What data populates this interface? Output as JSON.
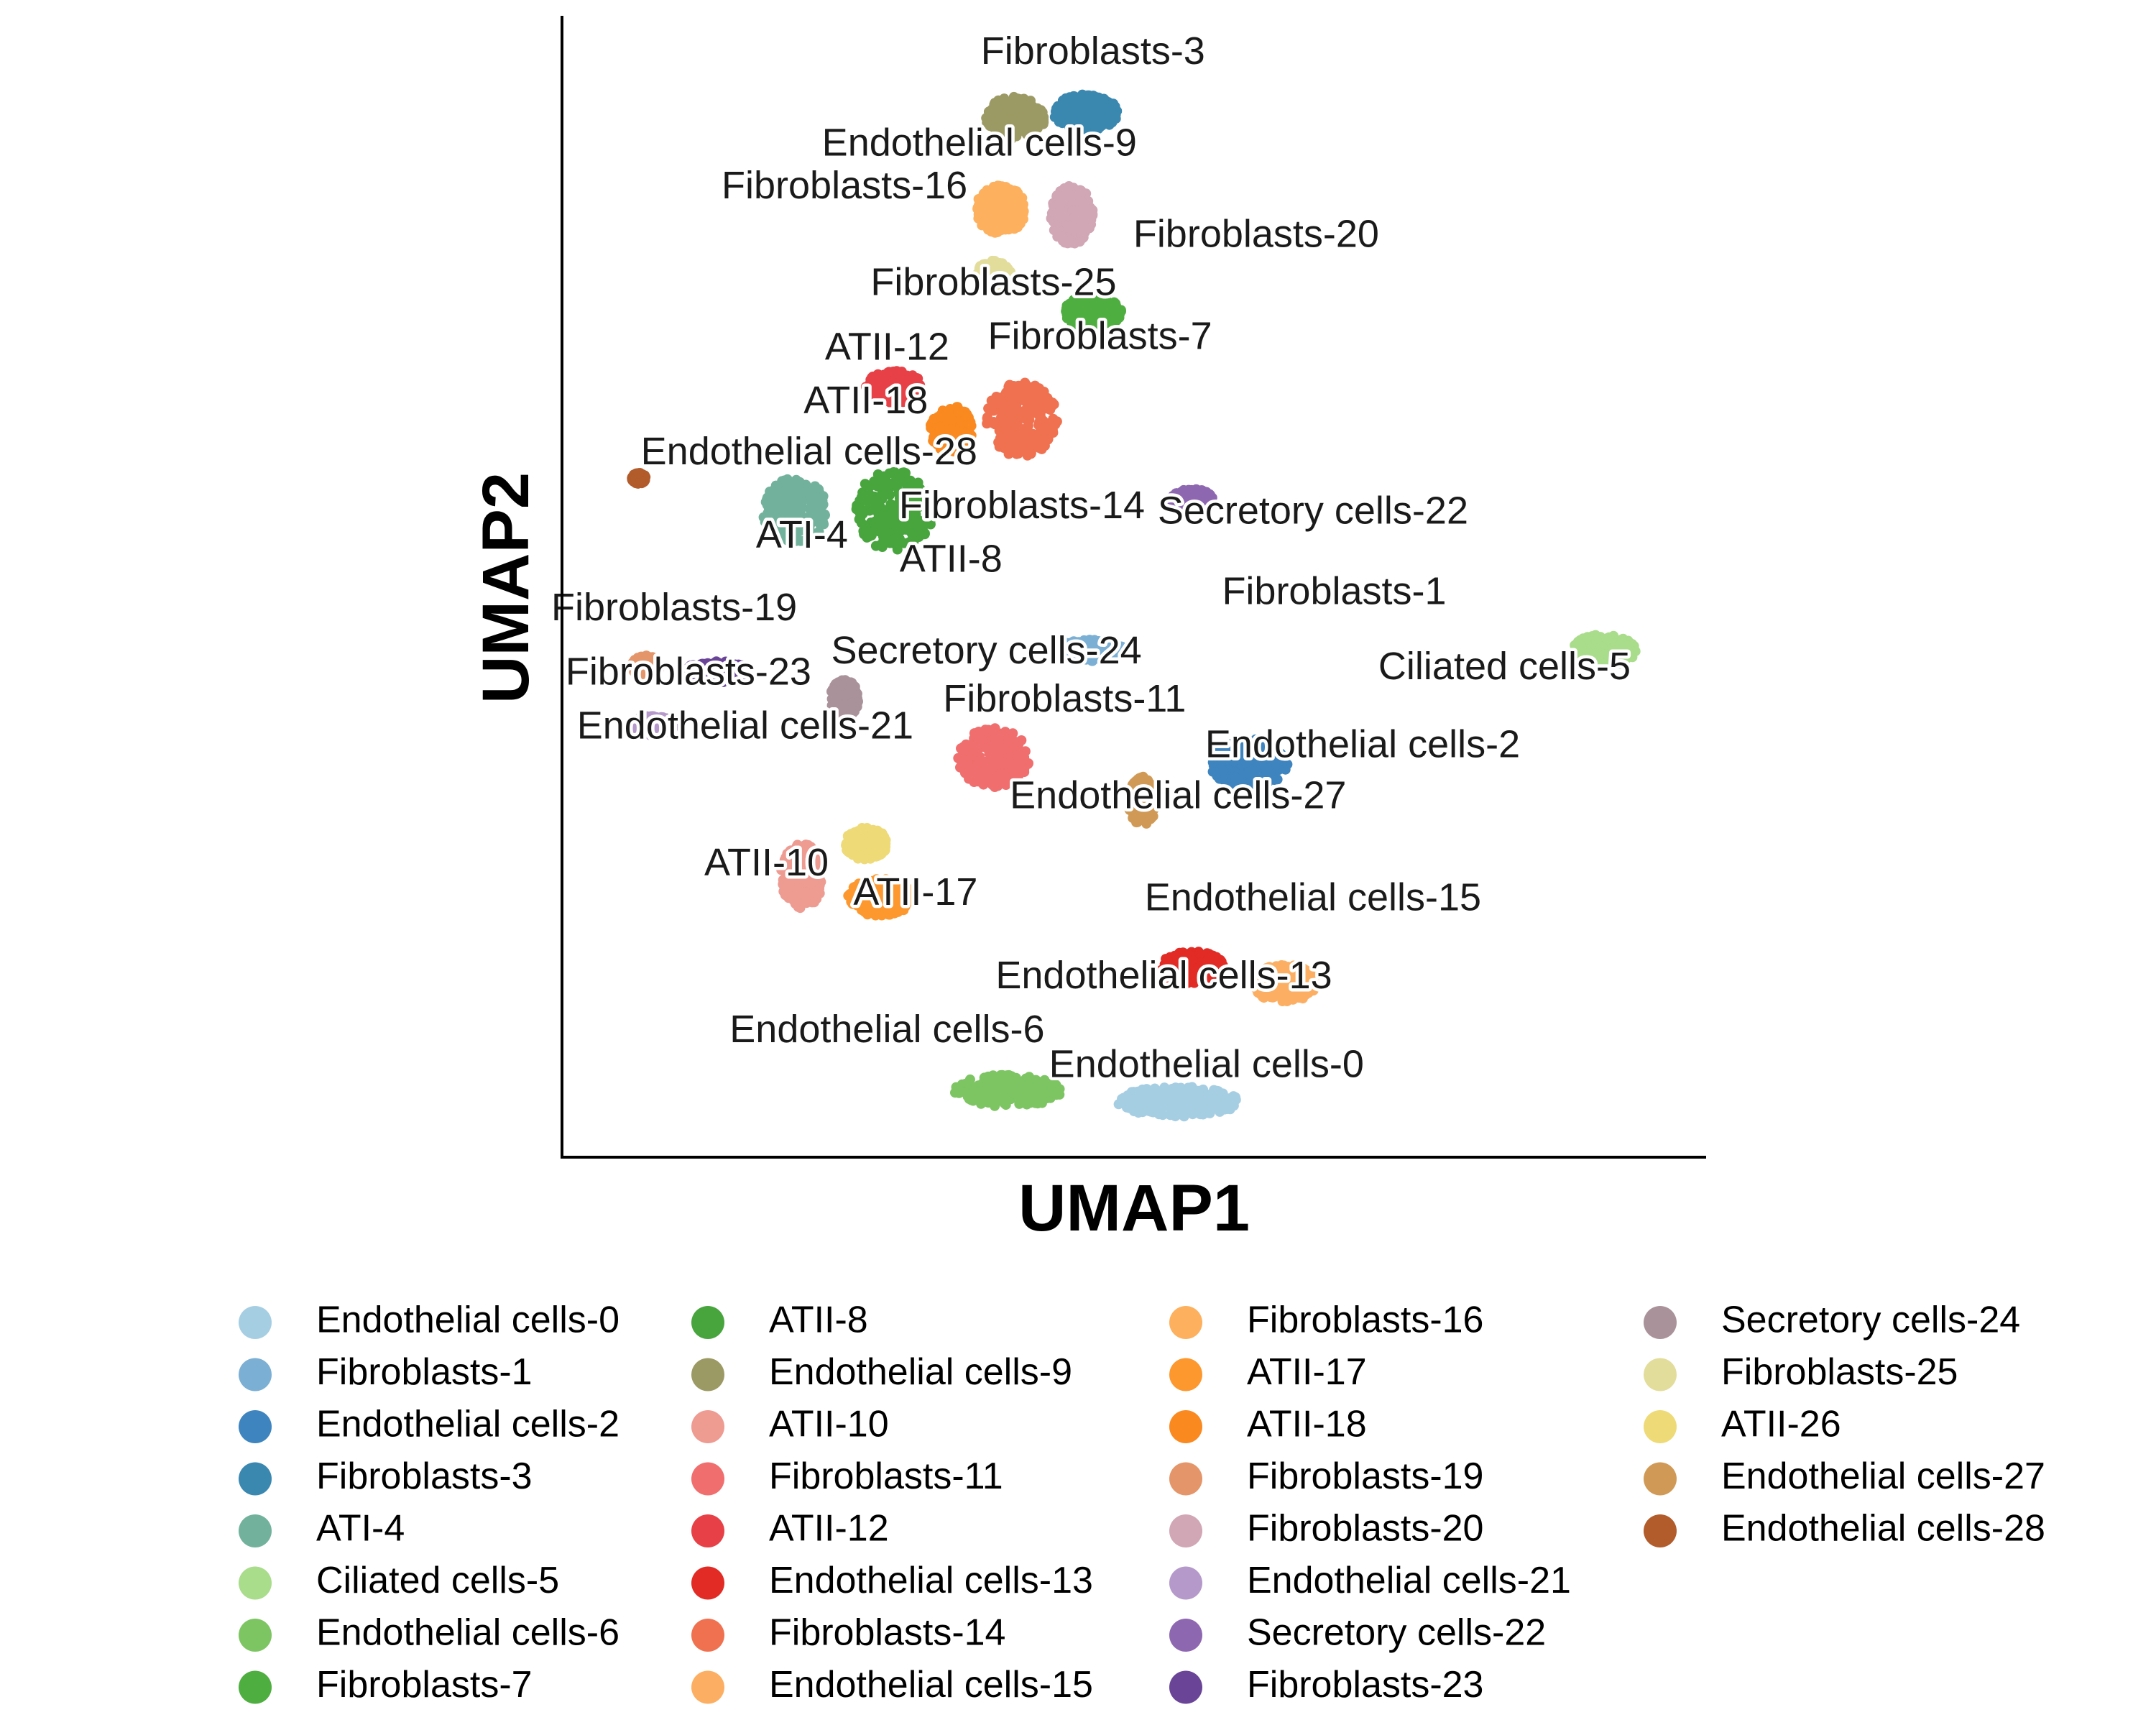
{
  "chart_data": {
    "type": "scatter",
    "xlabel": "UMAP1",
    "ylabel": "UMAP2",
    "grid": false,
    "legend_position": "bottom",
    "legend_columns": 4,
    "clusters": [
      {
        "name": "Endothelial cells-0",
        "color": "#A6CEE3",
        "center": [
          8.6,
          0.9
        ],
        "spread": [
          0.85,
          0.28
        ]
      },
      {
        "name": "Fibroblasts-1",
        "color": "#7BAFD4",
        "center": [
          7.4,
          9.3
        ],
        "spread": [
          0.5,
          0.2
        ]
      },
      {
        "name": "Endothelial cells-2",
        "color": "#3E84BE",
        "center": [
          9.6,
          7.2
        ],
        "spread": [
          0.55,
          0.45
        ]
      },
      {
        "name": "Fibroblasts-3",
        "color": "#3A88B0",
        "center": [
          7.3,
          19.3
        ],
        "spread": [
          0.45,
          0.35
        ]
      },
      {
        "name": "ATI-4",
        "color": "#72B29C",
        "center": [
          3.2,
          11.9
        ],
        "spread": [
          0.45,
          0.6
        ]
      },
      {
        "name": "Ciliated cells-5",
        "color": "#A9DC8B",
        "center": [
          14.6,
          9.3
        ],
        "spread": [
          0.45,
          0.3
        ]
      },
      {
        "name": "Endothelial cells-6",
        "color": "#7DC562",
        "center": [
          6.2,
          1.1
        ],
        "spread": [
          0.75,
          0.3
        ]
      },
      {
        "name": "Fibroblasts-7",
        "color": "#4FAE40",
        "center": [
          7.4,
          15.6
        ],
        "spread": [
          0.4,
          0.3
        ]
      },
      {
        "name": "ATII-8",
        "color": "#48A53E",
        "center": [
          4.6,
          11.9
        ],
        "spread": [
          0.55,
          0.75
        ]
      },
      {
        "name": "Endothelial cells-9",
        "color": "#9C9A64",
        "center": [
          6.3,
          19.2
        ],
        "spread": [
          0.42,
          0.4
        ]
      },
      {
        "name": "ATII-10",
        "color": "#EE9B92",
        "center": [
          3.3,
          5.1
        ],
        "spread": [
          0.3,
          0.6
        ]
      },
      {
        "name": "Fibroblasts-11",
        "color": "#F06E6D",
        "center": [
          6.0,
          7.3
        ],
        "spread": [
          0.5,
          0.55
        ]
      },
      {
        "name": "ATII-12",
        "color": "#E74046",
        "center": [
          4.6,
          14.2
        ],
        "spread": [
          0.4,
          0.3
        ]
      },
      {
        "name": "Endothelial cells-13",
        "color": "#E22B25",
        "center": [
          8.8,
          3.4
        ],
        "spread": [
          0.45,
          0.3
        ]
      },
      {
        "name": "Fibroblasts-14",
        "color": "#F07150",
        "center": [
          6.4,
          13.6
        ],
        "spread": [
          0.5,
          0.7
        ]
      },
      {
        "name": "Endothelial cells-15",
        "color": "#FCAF63",
        "center": [
          10.1,
          3.1
        ],
        "spread": [
          0.45,
          0.35
        ]
      },
      {
        "name": "Fibroblasts-16",
        "color": "#FDB05E",
        "center": [
          6.1,
          17.5
        ],
        "spread": [
          0.35,
          0.45
        ]
      },
      {
        "name": "ATII-17",
        "color": "#FD982F",
        "center": [
          4.4,
          4.7
        ],
        "spread": [
          0.45,
          0.35
        ]
      },
      {
        "name": "ATII-18",
        "color": "#FA8920",
        "center": [
          5.4,
          13.4
        ],
        "spread": [
          0.3,
          0.45
        ]
      },
      {
        "name": "Fibroblasts-19",
        "color": "#E4966A",
        "center": [
          1.1,
          9.0
        ],
        "spread": [
          0.2,
          0.2
        ]
      },
      {
        "name": "Fibroblasts-20",
        "color": "#D1A6B5",
        "center": [
          7.1,
          17.4
        ],
        "spread": [
          0.3,
          0.55
        ]
      },
      {
        "name": "Endothelial cells-21",
        "color": "#B599CA",
        "center": [
          1.2,
          7.9
        ],
        "spread": [
          0.3,
          0.18
        ]
      },
      {
        "name": "Secretory cells-22",
        "color": "#8E67B1",
        "center": [
          8.8,
          12.1
        ],
        "spread": [
          0.3,
          0.2
        ]
      },
      {
        "name": "Fibroblasts-23",
        "color": "#6A4597",
        "center": [
          2.1,
          8.9
        ],
        "spread": [
          0.45,
          0.2
        ]
      },
      {
        "name": "Secretory cells-24",
        "color": "#A99299",
        "center": [
          3.9,
          8.4
        ],
        "spread": [
          0.2,
          0.35
        ]
      },
      {
        "name": "Fibroblasts-25",
        "color": "#E3DD9C",
        "center": [
          6.0,
          16.3
        ],
        "spread": [
          0.25,
          0.25
        ]
      },
      {
        "name": "ATII-26",
        "color": "#EEDA76",
        "center": [
          4.2,
          5.7
        ],
        "spread": [
          0.3,
          0.3
        ]
      },
      {
        "name": "Endothelial cells-27",
        "color": "#D09A56",
        "center": [
          8.1,
          6.5
        ],
        "spread": [
          0.2,
          0.45
        ]
      },
      {
        "name": "Endothelial cells-28",
        "color": "#B25B2B",
        "center": [
          1.0,
          12.5
        ],
        "spread": [
          0.1,
          0.1
        ]
      }
    ],
    "labels": [
      {
        "text": "Fibroblasts-3",
        "x": 7.4,
        "y": 20.4
      },
      {
        "text": "Endothelial cells-9",
        "x": 5.8,
        "y": 18.7
      },
      {
        "text": "Fibroblasts-16",
        "x": 3.9,
        "y": 17.9
      },
      {
        "text": "Fibroblasts-20",
        "x": 9.7,
        "y": 17.0
      },
      {
        "text": "Fibroblasts-25",
        "x": 6.0,
        "y": 16.1
      },
      {
        "text": "Fibroblasts-7",
        "x": 7.5,
        "y": 15.1
      },
      {
        "text": "ATII-12",
        "x": 4.5,
        "y": 14.9
      },
      {
        "text": "ATII-18",
        "x": 4.2,
        "y": 13.9
      },
      {
        "text": "Endothelial cells-28",
        "x": 3.4,
        "y": 12.95
      },
      {
        "text": "Fibroblasts-14",
        "x": 6.4,
        "y": 11.95
      },
      {
        "text": "Secretory cells-22",
        "x": 10.5,
        "y": 11.85
      },
      {
        "text": "ATI-4",
        "x": 3.3,
        "y": 11.4
      },
      {
        "text": "ATII-8",
        "x": 5.4,
        "y": 10.95
      },
      {
        "text": "Fibroblasts-1",
        "x": 10.8,
        "y": 10.35
      },
      {
        "text": "Fibroblasts-19",
        "x": 1.5,
        "y": 10.05
      },
      {
        "text": "Secretory cells-24",
        "x": 5.9,
        "y": 9.25
      },
      {
        "text": "Ciliated cells-5",
        "x": 13.2,
        "y": 8.95
      },
      {
        "text": "Fibroblasts-23",
        "x": 1.7,
        "y": 8.85
      },
      {
        "text": "Fibroblasts-11",
        "x": 7.0,
        "y": 8.35
      },
      {
        "text": "Endothelial cells-21",
        "x": 2.5,
        "y": 7.85
      },
      {
        "text": "Endothelial cells-2",
        "x": 11.2,
        "y": 7.5
      },
      {
        "text": "Endothelial cells-27",
        "x": 8.6,
        "y": 6.55
      },
      {
        "text": "ATII-10",
        "x": 2.8,
        "y": 5.3
      },
      {
        "text": "ATII-17",
        "x": 4.9,
        "y": 4.75
      },
      {
        "text": "Endothelial cells-15",
        "x": 10.5,
        "y": 4.65
      },
      {
        "text": "Endothelial cells-13",
        "x": 8.4,
        "y": 3.2
      },
      {
        "text": "Endothelial cells-6",
        "x": 4.5,
        "y": 2.2
      },
      {
        "text": "Endothelial cells-0",
        "x": 9.0,
        "y": 1.55
      }
    ]
  }
}
